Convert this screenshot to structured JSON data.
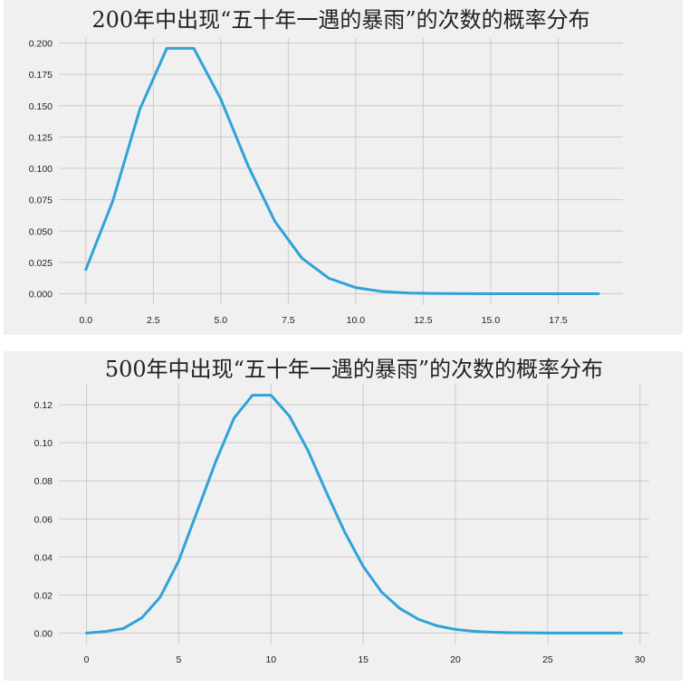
{
  "chart_data": [
    {
      "type": "line",
      "title": "200年中出现“五十年一遇的暴雨”的次数的概率分布",
      "xlabel": "",
      "ylabel": "",
      "x": [
        0,
        1,
        2,
        3,
        4,
        5,
        6,
        7,
        8,
        9,
        10,
        11,
        12,
        13,
        14,
        15,
        16,
        17,
        18,
        19
      ],
      "series": [
        {
          "values": [
            0.0193,
            0.0741,
            0.1471,
            0.1958,
            0.1958,
            0.1553,
            0.1027,
            0.0579,
            0.0285,
            0.0124,
            0.0049,
            0.0017,
            0.0006,
            0.0002,
            0.0001,
            0.0,
            0.0,
            0.0,
            0.0,
            0.0
          ],
          "color": "#30a2da"
        }
      ],
      "xlim": [
        -1.0,
        19.9
      ],
      "ylim": [
        -0.009,
        0.204
      ],
      "xticks": [
        0.0,
        2.5,
        5.0,
        7.5,
        10.0,
        12.5,
        15.0,
        17.5
      ],
      "xtick_labels": [
        "0.0",
        "2.5",
        "5.0",
        "7.5",
        "10.0",
        "12.5",
        "15.0",
        "17.5"
      ],
      "yticks": [
        0.0,
        0.025,
        0.05,
        0.075,
        0.1,
        0.125,
        0.15,
        0.175,
        0.2
      ],
      "ytick_labels": [
        "0.000",
        "0.025",
        "0.050",
        "0.075",
        "0.100",
        "0.125",
        "0.150",
        "0.175",
        "0.200"
      ],
      "grid": true
    },
    {
      "type": "line",
      "title": "500年中出现“五十年一遇的暴雨”的次数的概率分布",
      "xlabel": "",
      "ylabel": "",
      "x": [
        0,
        1,
        2,
        3,
        4,
        5,
        6,
        7,
        8,
        9,
        10,
        11,
        12,
        13,
        14,
        15,
        16,
        17,
        18,
        19,
        20,
        21,
        22,
        23,
        24,
        25,
        26,
        27,
        28,
        29
      ],
      "series": [
        {
          "values": [
            0.0,
            0.0008,
            0.0024,
            0.008,
            0.019,
            0.038,
            0.064,
            0.09,
            0.113,
            0.125,
            0.125,
            0.114,
            0.096,
            0.074,
            0.053,
            0.035,
            0.0215,
            0.0128,
            0.0072,
            0.0038,
            0.0019,
            0.0009,
            0.0004,
            0.0002,
            0.0001,
            0.0,
            0.0,
            0.0,
            0.0,
            0.0
          ],
          "color": "#30a2da"
        }
      ],
      "xlim": [
        -1.5,
        30.5
      ],
      "ylim": [
        -0.006,
        0.131
      ],
      "xticks": [
        0,
        5,
        10,
        15,
        20,
        25,
        30
      ],
      "xtick_labels": [
        "0",
        "5",
        "10",
        "15",
        "20",
        "25",
        "30"
      ],
      "yticks": [
        0.0,
        0.02,
        0.04,
        0.06,
        0.08,
        0.1,
        0.12
      ],
      "ytick_labels": [
        "0.00",
        "0.02",
        "0.04",
        "0.06",
        "0.08",
        "0.10",
        "0.12"
      ],
      "grid": true
    }
  ]
}
